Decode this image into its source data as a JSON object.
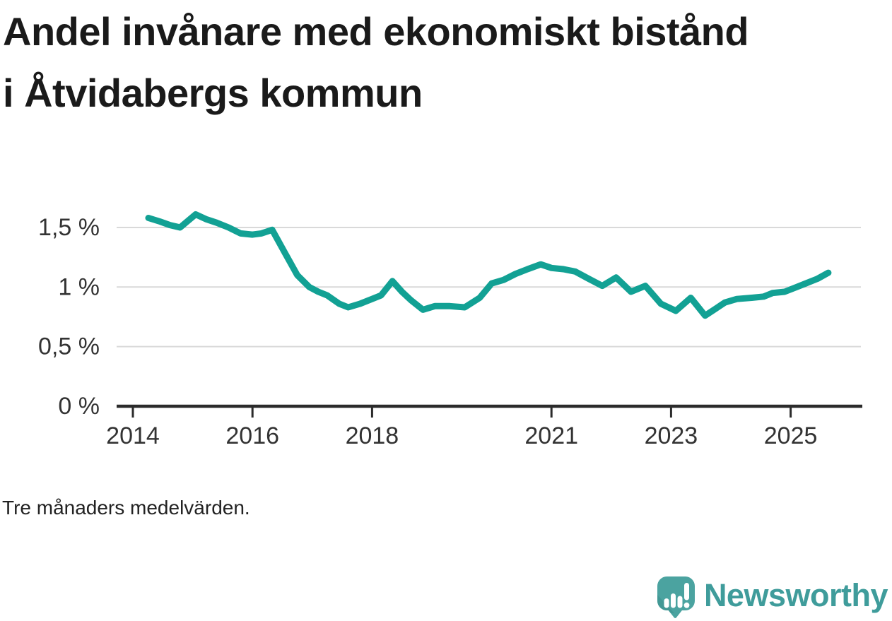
{
  "title": "Andel invånare med ekonomiskt bistånd i Åtvidabergs kommun",
  "footnote": "Tre månaders medelvärden.",
  "brand": {
    "name": "Newsworthy",
    "logo_icon": "speech-bubble-bar-chart-icon",
    "mark_color": "#4ba3a0",
    "mark_shade_color": "#3c8f8d",
    "text_color": "#3f9c9b"
  },
  "colors": {
    "line": "#12a194",
    "grid": "#d9d9d9",
    "axis": "#2b2b2b",
    "tick_text": "#333333",
    "title_text": "#1a1a1a"
  },
  "chart_data": {
    "type": "line",
    "title": "Andel invånare med ekonomiskt bistånd i Åtvidabergs kommun",
    "subtitle": "Tre månaders medelvärden.",
    "xlabel": "",
    "ylabel": "",
    "x_unit": "year (decimal)",
    "y_unit": "percent of residents",
    "xlim": [
      2013.7,
      2026.2
    ],
    "ylim": [
      0,
      1.75
    ],
    "grid": "horizontal",
    "legend": "none",
    "yticks": [
      {
        "value": 0,
        "label": "0 %"
      },
      {
        "value": 0.5,
        "label": "0,5 %"
      },
      {
        "value": 1,
        "label": "1 %"
      },
      {
        "value": 1.5,
        "label": "1,5 %"
      }
    ],
    "xticks": [
      {
        "value": 2014,
        "label": "2014"
      },
      {
        "value": 2016,
        "label": "2016"
      },
      {
        "value": 2018,
        "label": "2018"
      },
      {
        "value": 2021,
        "label": "2021"
      },
      {
        "value": 2023,
        "label": "2023"
      },
      {
        "value": 2025,
        "label": "2025"
      }
    ],
    "series": [
      {
        "name": "Andel invånare med ekonomiskt bistånd",
        "color": "#12a194",
        "points": [
          [
            2014.26,
            1.58
          ],
          [
            2014.45,
            1.55
          ],
          [
            2014.62,
            1.52
          ],
          [
            2014.79,
            1.5
          ],
          [
            2015.05,
            1.61
          ],
          [
            2015.22,
            1.57
          ],
          [
            2015.4,
            1.54
          ],
          [
            2015.6,
            1.5
          ],
          [
            2015.8,
            1.45
          ],
          [
            2016.0,
            1.44
          ],
          [
            2016.15,
            1.45
          ],
          [
            2016.33,
            1.48
          ],
          [
            2016.55,
            1.28
          ],
          [
            2016.75,
            1.1
          ],
          [
            2016.95,
            1.0
          ],
          [
            2017.1,
            0.96
          ],
          [
            2017.25,
            0.93
          ],
          [
            2017.45,
            0.86
          ],
          [
            2017.6,
            0.83
          ],
          [
            2017.8,
            0.86
          ],
          [
            2018.0,
            0.9
          ],
          [
            2018.15,
            0.93
          ],
          [
            2018.34,
            1.05
          ],
          [
            2018.5,
            0.96
          ],
          [
            2018.65,
            0.89
          ],
          [
            2018.85,
            0.81
          ],
          [
            2019.05,
            0.84
          ],
          [
            2019.3,
            0.84
          ],
          [
            2019.55,
            0.83
          ],
          [
            2019.8,
            0.91
          ],
          [
            2020.0,
            1.03
          ],
          [
            2020.2,
            1.06
          ],
          [
            2020.4,
            1.11
          ],
          [
            2020.6,
            1.15
          ],
          [
            2020.82,
            1.19
          ],
          [
            2021.0,
            1.16
          ],
          [
            2021.2,
            1.15
          ],
          [
            2021.4,
            1.13
          ],
          [
            2021.62,
            1.07
          ],
          [
            2021.85,
            1.01
          ],
          [
            2022.08,
            1.08
          ],
          [
            2022.33,
            0.96
          ],
          [
            2022.57,
            1.01
          ],
          [
            2022.83,
            0.86
          ],
          [
            2023.08,
            0.8
          ],
          [
            2023.33,
            0.91
          ],
          [
            2023.57,
            0.76
          ],
          [
            2023.75,
            0.82
          ],
          [
            2023.9,
            0.87
          ],
          [
            2024.1,
            0.9
          ],
          [
            2024.35,
            0.91
          ],
          [
            2024.55,
            0.92
          ],
          [
            2024.7,
            0.95
          ],
          [
            2024.9,
            0.96
          ],
          [
            2025.1,
            1.0
          ],
          [
            2025.3,
            1.04
          ],
          [
            2025.45,
            1.07
          ],
          [
            2025.63,
            1.12
          ]
        ]
      }
    ]
  }
}
